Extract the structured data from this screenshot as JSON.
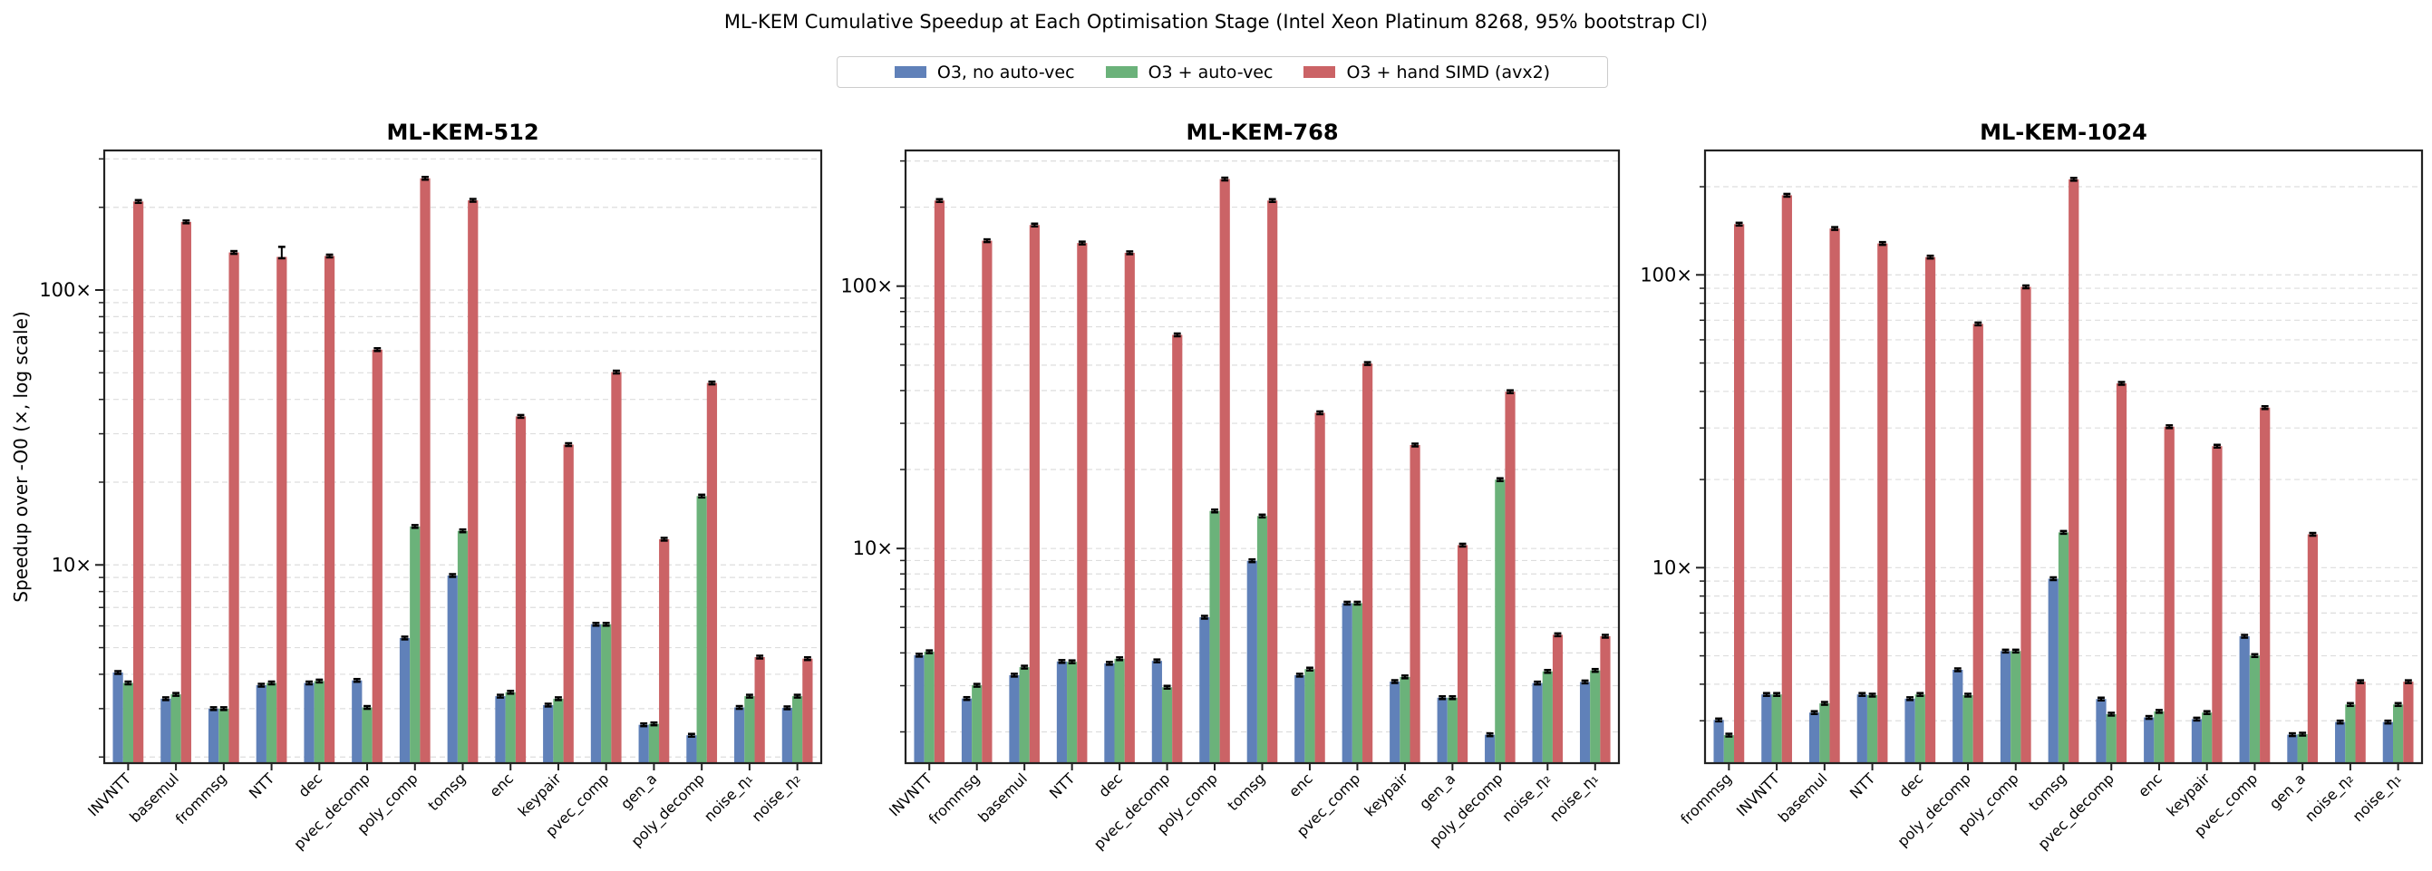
{
  "title": "ML-KEM Cumulative Speedup at Each Optimisation Stage  (Intel Xeon Platinum 8268, 95% bootstrap CI)",
  "legend": [
    {
      "label": "O3, no auto-vec",
      "color": "#6081b9"
    },
    {
      "label": "O3 + auto-vec",
      "color": "#6bb27a"
    },
    {
      "label": "O3 + hand SIMD (avx2)",
      "color": "#cb6366"
    }
  ],
  "chart_data": [
    {
      "type": "bar",
      "title": "ML-KEM-512",
      "ylabel": "Speedup over -O0 (×, log scale)",
      "yscale": "log",
      "ylim": [
        1.9,
        322
      ],
      "yticks": [
        {
          "value": 10,
          "label": "10×"
        },
        {
          "value": 100,
          "label": "100×"
        }
      ],
      "grid": true,
      "categories": [
        "INVNTT",
        "basemul",
        "frommsg",
        "NTT",
        "dec",
        "pvec_decomp",
        "poly_comp",
        "tomsg",
        "enc",
        "keypair",
        "pvec_comp",
        "gen_a",
        "poly_decomp",
        "noise_η₁",
        "noise_η₂"
      ],
      "series": [
        {
          "name": "O3, no auto-vec",
          "values": [
            4.06,
            3.26,
            3.0,
            3.65,
            3.72,
            3.8,
            5.42,
            9.15,
            3.33,
            3.09,
            6.08,
            2.62,
            2.4,
            3.03,
            3.02
          ]
        },
        {
          "name": "O3 + auto-vec",
          "values": [
            3.72,
            3.38,
            3.0,
            3.72,
            3.78,
            3.03,
            13.8,
            13.3,
            3.44,
            3.26,
            6.08,
            2.64,
            17.8,
            3.33,
            3.33
          ]
        },
        {
          "name": "O3 + hand SIMD (avx2)",
          "values": [
            210,
            177,
            137,
            132,
            133,
            60.7,
            255,
            212,
            34.7,
            27.4,
            50.3,
            12.4,
            45.9,
            4.62,
            4.56
          ],
          "ci_upper_override": {
            "3": 143.6
          }
        }
      ]
    },
    {
      "type": "bar",
      "title": "ML-KEM-768",
      "ylabel": "",
      "yscale": "log",
      "ylim": [
        1.52,
        329
      ],
      "yticks": [
        {
          "value": 10,
          "label": "10×"
        },
        {
          "value": 100,
          "label": "100×"
        }
      ],
      "grid": true,
      "categories": [
        "INVNTT",
        "frommsg",
        "basemul",
        "NTT",
        "dec",
        "pvec_decomp",
        "poly_comp",
        "tomsg",
        "enc",
        "pvec_comp",
        "keypair",
        "gen_a",
        "poly_decomp",
        "noise_η₂",
        "noise_η₁"
      ],
      "series": [
        {
          "name": "O3, no auto-vec",
          "values": [
            3.92,
            2.68,
            3.29,
            3.71,
            3.65,
            3.73,
            5.47,
            8.98,
            3.29,
            6.19,
            3.11,
            2.7,
            1.95,
            3.07,
            3.1
          ]
        },
        {
          "name": "O3 + auto-vec",
          "values": [
            4.04,
            3.01,
            3.53,
            3.7,
            3.8,
            2.96,
            13.9,
            13.3,
            3.47,
            6.19,
            3.24,
            2.7,
            18.3,
            3.4,
            3.43
          ]
        },
        {
          "name": "O3 + hand SIMD (avx2)",
          "values": [
            212,
            149,
            171,
            146,
            134,
            65.2,
            256,
            212,
            32.9,
            50.7,
            24.8,
            10.3,
            39.6,
            4.69,
            4.63
          ]
        }
      ]
    },
    {
      "type": "bar",
      "title": "ML-KEM-1024",
      "ylabel": "",
      "yscale": "log",
      "ylim": [
        2.15,
        266
      ],
      "yticks": [
        {
          "value": 10,
          "label": "10×"
        },
        {
          "value": 100,
          "label": "100×"
        }
      ],
      "grid": true,
      "categories": [
        "frommsg",
        "INVNTT",
        "basemul",
        "NTT",
        "dec",
        "poly_decomp",
        "poly_comp",
        "tomsg",
        "pvec_decomp",
        "enc",
        "keypair",
        "pvec_comp",
        "gen_a",
        "noise_η₂",
        "noise_η₁"
      ],
      "series": [
        {
          "name": "O3, no auto-vec",
          "values": [
            3.02,
            3.69,
            3.2,
            3.69,
            3.57,
            4.48,
            5.19,
            9.17,
            3.56,
            3.08,
            3.04,
            5.83,
            2.69,
            2.97,
            2.97
          ]
        },
        {
          "name": "O3 + auto-vec",
          "values": [
            2.68,
            3.69,
            3.44,
            3.67,
            3.69,
            3.67,
            5.19,
            13.2,
            3.16,
            3.23,
            3.2,
            5.01,
            2.7,
            3.41,
            3.41
          ]
        },
        {
          "name": "O3 + hand SIMD (avx2)",
          "values": [
            149,
            187,
            144,
            128,
            115,
            68,
            91,
            212,
            42.6,
            30.3,
            26.0,
            35.2,
            13.0,
            4.08,
            4.08
          ]
        }
      ]
    }
  ]
}
